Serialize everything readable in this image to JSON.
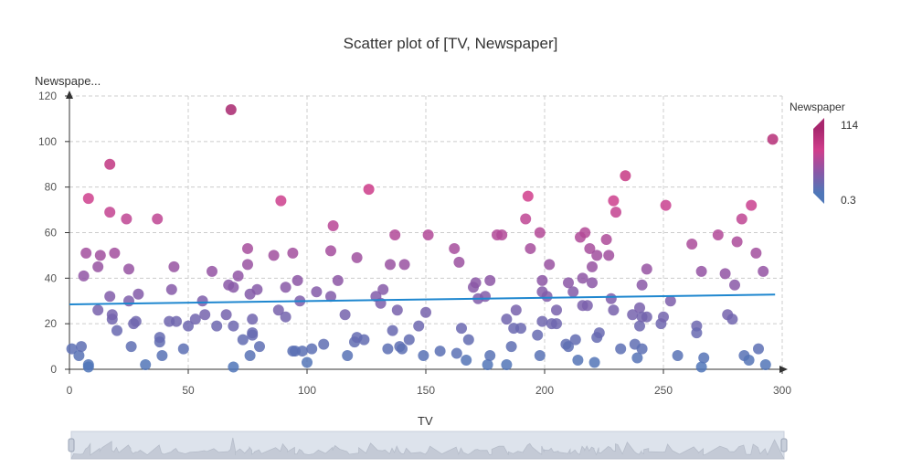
{
  "chart_data": {
    "type": "scatter",
    "title": "Scatter plot of [TV, Newspaper]",
    "xlabel": "TV",
    "ylabel": "Newspape...",
    "xlim": [
      0,
      300
    ],
    "ylim": [
      0,
      120
    ],
    "xticks": [
      0,
      50,
      100,
      150,
      200,
      250,
      300
    ],
    "yticks": [
      0,
      20,
      40,
      60,
      80,
      100,
      120
    ],
    "grid": true,
    "visual_map": {
      "title": "Newspaper",
      "max": 114,
      "min": 0.3,
      "colors": [
        "#4f77b8",
        "#8b57a6",
        "#d03e8c",
        "#a8276e"
      ]
    },
    "regression_line": {
      "x": [
        0,
        297
      ],
      "y": [
        28.5,
        32.8
      ],
      "color": "#1f87cf"
    },
    "points": [
      [
        1,
        9
      ],
      [
        4,
        6
      ],
      [
        5,
        10
      ],
      [
        6,
        41
      ],
      [
        7,
        51
      ],
      [
        8,
        75
      ],
      [
        8,
        2
      ],
      [
        8,
        1
      ],
      [
        12,
        45
      ],
      [
        12,
        26
      ],
      [
        13,
        50
      ],
      [
        17,
        90
      ],
      [
        17,
        69
      ],
      [
        17,
        32
      ],
      [
        18,
        22
      ],
      [
        18,
        24
      ],
      [
        19,
        51
      ],
      [
        20,
        17
      ],
      [
        24,
        66
      ],
      [
        25,
        44
      ],
      [
        25,
        30
      ],
      [
        26,
        10
      ],
      [
        27,
        20
      ],
      [
        28,
        21
      ],
      [
        29,
        33
      ],
      [
        32,
        2
      ],
      [
        37,
        66
      ],
      [
        38,
        12
      ],
      [
        38,
        14
      ],
      [
        39,
        6
      ],
      [
        42,
        21
      ],
      [
        43,
        35
      ],
      [
        44,
        45
      ],
      [
        45,
        21
      ],
      [
        48,
        9
      ],
      [
        50,
        19
      ],
      [
        53,
        22
      ],
      [
        56,
        30
      ],
      [
        57,
        24
      ],
      [
        60,
        43
      ],
      [
        62,
        19
      ],
      [
        66,
        24
      ],
      [
        67,
        37
      ],
      [
        68,
        114
      ],
      [
        69,
        36
      ],
      [
        69,
        1
      ],
      [
        69,
        19
      ],
      [
        71,
        41
      ],
      [
        73,
        13
      ],
      [
        75,
        46
      ],
      [
        75,
        53
      ],
      [
        76,
        33
      ],
      [
        76,
        6
      ],
      [
        77,
        16
      ],
      [
        77,
        15
      ],
      [
        77,
        22
      ],
      [
        79,
        35
      ],
      [
        80,
        10
      ],
      [
        86,
        50
      ],
      [
        88,
        26
      ],
      [
        89,
        74
      ],
      [
        91,
        36
      ],
      [
        91,
        23
      ],
      [
        94,
        51
      ],
      [
        94,
        8
      ],
      [
        95,
        8
      ],
      [
        96,
        39
      ],
      [
        97,
        30
      ],
      [
        98,
        8
      ],
      [
        100,
        3
      ],
      [
        102,
        9
      ],
      [
        104,
        34
      ],
      [
        107,
        11
      ],
      [
        110,
        52
      ],
      [
        110,
        32
      ],
      [
        111,
        63
      ],
      [
        113,
        39
      ],
      [
        116,
        24
      ],
      [
        117,
        6
      ],
      [
        120,
        12
      ],
      [
        121,
        14
      ],
      [
        121,
        49
      ],
      [
        124,
        13
      ],
      [
        126,
        79
      ],
      [
        129,
        32
      ],
      [
        131,
        29
      ],
      [
        132,
        35
      ],
      [
        134,
        9
      ],
      [
        135,
        46
      ],
      [
        136,
        17
      ],
      [
        137,
        59
      ],
      [
        138,
        26
      ],
      [
        139,
        10
      ],
      [
        140,
        9
      ],
      [
        141,
        46
      ],
      [
        143,
        13
      ],
      [
        147,
        19
      ],
      [
        149,
        6
      ],
      [
        150,
        25
      ],
      [
        151,
        59
      ],
      [
        156,
        8
      ],
      [
        162,
        53
      ],
      [
        163,
        7
      ],
      [
        164,
        47
      ],
      [
        165,
        18
      ],
      [
        167,
        4
      ],
      [
        168,
        13
      ],
      [
        170,
        36
      ],
      [
        171,
        38
      ],
      [
        172,
        31
      ],
      [
        175,
        32
      ],
      [
        176,
        2
      ],
      [
        177,
        6
      ],
      [
        177,
        39
      ],
      [
        180,
        59
      ],
      [
        182,
        59
      ],
      [
        184,
        2
      ],
      [
        184,
        22
      ],
      [
        186,
        10
      ],
      [
        187,
        18
      ],
      [
        188,
        26
      ],
      [
        190,
        18
      ],
      [
        192,
        66
      ],
      [
        193,
        76
      ],
      [
        194,
        53
      ],
      [
        197,
        15
      ],
      [
        198,
        6
      ],
      [
        198,
        60
      ],
      [
        199,
        21
      ],
      [
        199,
        39
      ],
      [
        199,
        34
      ],
      [
        201,
        32
      ],
      [
        202,
        46
      ],
      [
        203,
        20
      ],
      [
        205,
        26
      ],
      [
        205,
        20
      ],
      [
        209,
        11
      ],
      [
        210,
        38
      ],
      [
        210,
        10
      ],
      [
        212,
        34
      ],
      [
        213,
        13
      ],
      [
        214,
        4
      ],
      [
        215,
        58
      ],
      [
        216,
        40
      ],
      [
        216,
        28
      ],
      [
        217,
        60
      ],
      [
        218,
        28
      ],
      [
        219,
        53
      ],
      [
        220,
        45
      ],
      [
        220,
        38
      ],
      [
        221,
        3
      ],
      [
        222,
        50
      ],
      [
        222,
        14
      ],
      [
        223,
        16
      ],
      [
        226,
        57
      ],
      [
        227,
        50
      ],
      [
        228,
        31
      ],
      [
        229,
        26
      ],
      [
        229,
        74
      ],
      [
        230,
        69
      ],
      [
        232,
        9
      ],
      [
        234,
        85
      ],
      [
        237,
        24
      ],
      [
        238,
        11
      ],
      [
        239,
        5
      ],
      [
        240,
        27
      ],
      [
        240,
        19
      ],
      [
        241,
        9
      ],
      [
        241,
        23
      ],
      [
        241,
        37
      ],
      [
        243,
        44
      ],
      [
        243,
        23
      ],
      [
        249,
        20
      ],
      [
        250,
        23
      ],
      [
        251,
        72
      ],
      [
        253,
        30
      ],
      [
        256,
        6
      ],
      [
        262,
        55
      ],
      [
        264,
        19
      ],
      [
        264,
        16
      ],
      [
        266,
        43
      ],
      [
        266,
        1
      ],
      [
        267,
        5
      ],
      [
        273,
        59
      ],
      [
        276,
        42
      ],
      [
        277,
        24
      ],
      [
        279,
        22
      ],
      [
        280,
        37
      ],
      [
        281,
        56
      ],
      [
        283,
        66
      ],
      [
        284,
        6
      ],
      [
        286,
        4
      ],
      [
        287,
        72
      ],
      [
        289,
        51
      ],
      [
        290,
        9
      ],
      [
        292,
        43
      ],
      [
        293,
        2
      ],
      [
        296,
        101
      ]
    ]
  },
  "zoom_slider": {
    "start": 0,
    "end": 100
  }
}
